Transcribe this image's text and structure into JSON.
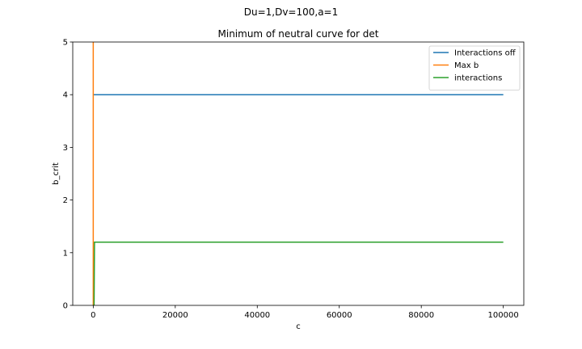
{
  "figure": {
    "suptitle": "Du=1,Dv=100,a=1"
  },
  "chart_data": {
    "type": "line",
    "title": "Minimum of neutral curve for det",
    "xlabel": "c",
    "ylabel": "b_crit",
    "xlim": [
      -5000,
      105000
    ],
    "ylim": [
      0,
      5
    ],
    "xticks": [
      0,
      20000,
      40000,
      60000,
      80000,
      100000
    ],
    "yticks": [
      0,
      1,
      2,
      3,
      4,
      5
    ],
    "grid": false,
    "legend_position": "top-right",
    "series": [
      {
        "name": "Interactions off",
        "color": "#1f77b4",
        "x": [
          0,
          100000
        ],
        "y": [
          4.0,
          4.0
        ]
      },
      {
        "name": "Max b",
        "color": "#ff7f0e",
        "x": [
          0,
          0,
          0
        ],
        "y": [
          5.0,
          1.2,
          0.0
        ]
      },
      {
        "name": "interactions",
        "color": "#2ca02c",
        "x": [
          0,
          200,
          300,
          100000
        ],
        "y": [
          0.0,
          0.0,
          1.2,
          1.2
        ]
      }
    ]
  }
}
